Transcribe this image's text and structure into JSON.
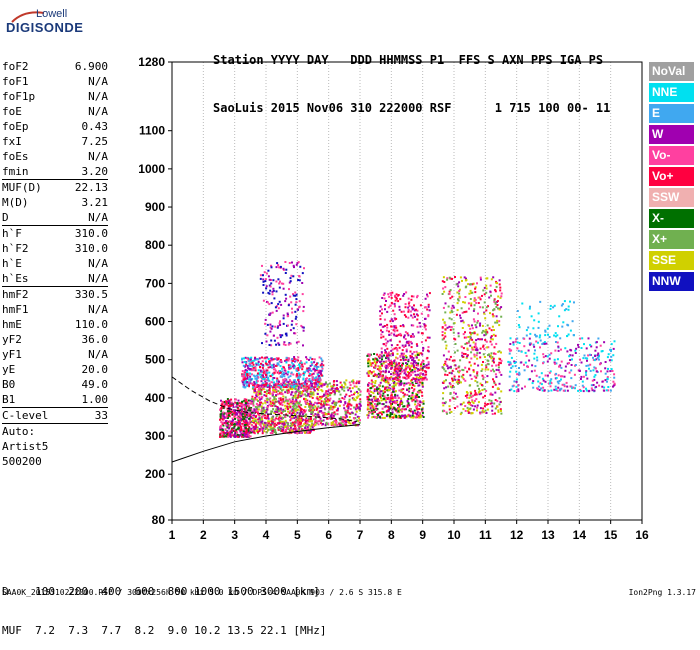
{
  "logo": {
    "line1": "Lowell",
    "line2": "DIGISONDE"
  },
  "header": {
    "line1": "Station YYYY DAY   DDD HHMMSS P1  FFS S AXN PPS IGA PS",
    "line2": "SaoLuis 2015 Nov06 310 222000 RSF      1 715 100 00- 11"
  },
  "params": [
    {
      "label": "foF2",
      "value": "6.900"
    },
    {
      "label": "foF1",
      "value": "N/A"
    },
    {
      "label": "foF1p",
      "value": "N/A"
    },
    {
      "label": "foE",
      "value": "N/A"
    },
    {
      "label": "foEp",
      "value": "0.43"
    },
    {
      "label": "fxI",
      "value": "7.25"
    },
    {
      "label": "foEs",
      "value": "N/A"
    },
    {
      "label": "fmin",
      "value": "3.20"
    },
    {
      "label": "MUF(D)",
      "value": "22.13"
    },
    {
      "label": "M(D)",
      "value": "3.21"
    },
    {
      "label": "D",
      "value": "N/A"
    },
    {
      "label": "h`F",
      "value": "310.0"
    },
    {
      "label": "h`F2",
      "value": "310.0"
    },
    {
      "label": "h`E",
      "value": "N/A"
    },
    {
      "label": "h`Es",
      "value": "N/A"
    },
    {
      "label": "hmF2",
      "value": "330.5"
    },
    {
      "label": "hmF1",
      "value": "N/A"
    },
    {
      "label": "hmE",
      "value": "110.0"
    },
    {
      "label": "yF2",
      "value": "36.0"
    },
    {
      "label": "yF1",
      "value": "N/A"
    },
    {
      "label": "yE",
      "value": "20.0"
    },
    {
      "label": "B0",
      "value": "49.0"
    },
    {
      "label": "B1",
      "value": "1.00"
    },
    {
      "label": "C-level",
      "value": "33"
    },
    {
      "label": "Auto:",
      "value": ""
    },
    {
      "label": "Artist5",
      "value": ""
    },
    {
      "label": "500200",
      "value": ""
    }
  ],
  "legend": [
    {
      "label": "NoVal",
      "color": "#a0a0a0"
    },
    {
      "label": "NNE",
      "color": "#00e0f0"
    },
    {
      "label": "E",
      "color": "#40a8f0"
    },
    {
      "label": "W",
      "color": "#a000b0"
    },
    {
      "label": "Vo-",
      "color": "#ff40a0"
    },
    {
      "label": "Vo+",
      "color": "#ff0040"
    },
    {
      "label": "SSW",
      "color": "#f0b0b0"
    },
    {
      "label": "X-",
      "color": "#007000"
    },
    {
      "label": "X+",
      "color": "#70b050"
    },
    {
      "label": "SSE",
      "color": "#d0d000"
    },
    {
      "label": "NNW",
      "color": "#1010c0"
    }
  ],
  "bottom": {
    "d_row": "D    100  200  400  600  800 1000 1500 3000 [km]",
    "muf_row": "MUF  7.2  7.3  7.7  8.2  9.0 10.2 13.5 22.1 [MHz]"
  },
  "footer": {
    "text": "SAA0K_2015310222000.RSF / 300fx256h 50 kHz 5.0 km / DPS-4 SAA0K 903 / 2.6 S 315.8 E",
    "version": "Ion2Png 1.3.17"
  },
  "chart_data": {
    "type": "scatter",
    "x_range": [
      1,
      16
    ],
    "y_range": [
      80,
      1280
    ],
    "x_ticks": [
      "1",
      "2",
      "3",
      "4",
      "5",
      "6",
      "7",
      "8",
      "9",
      "10",
      "11",
      "12",
      "13",
      "14",
      "15",
      "16"
    ],
    "y_ticks": [
      "80",
      "200",
      "300",
      "400",
      "500",
      "600",
      "700",
      "800",
      "900",
      "1000",
      "1100",
      "1280"
    ],
    "clusters": [
      {
        "x": [
          2.5,
          3.5
        ],
        "y": [
          300,
          400
        ],
        "colors": [
          "Vo+",
          "Vo-",
          "W",
          "X-"
        ],
        "n": 500
      },
      {
        "x": [
          3.5,
          5.5
        ],
        "y": [
          310,
          440
        ],
        "colors": [
          "Vo+",
          "Vo-",
          "W",
          "SSE",
          "X+"
        ],
        "n": 900
      },
      {
        "x": [
          3.2,
          5.8
        ],
        "y": [
          430,
          510
        ],
        "colors": [
          "W",
          "Vo-",
          "NNE",
          "E",
          "Vo+"
        ],
        "n": 600
      },
      {
        "x": [
          5.5,
          7.0
        ],
        "y": [
          330,
          450
        ],
        "colors": [
          "Vo+",
          "W",
          "Vo-",
          "SSE",
          "X+"
        ],
        "n": 400
      },
      {
        "x": [
          3.8,
          5.2
        ],
        "y": [
          540,
          760
        ],
        "colors": [
          "W",
          "Vo-",
          "NNW"
        ],
        "n": 180
      },
      {
        "x": [
          7.2,
          9.0
        ],
        "y": [
          350,
          520
        ],
        "colors": [
          "Vo+",
          "Vo-",
          "W",
          "SSE",
          "X-"
        ],
        "n": 700
      },
      {
        "x": [
          7.6,
          9.2
        ],
        "y": [
          450,
          680
        ],
        "colors": [
          "W",
          "Vo-",
          "Vo+"
        ],
        "n": 350
      },
      {
        "x": [
          9.6,
          11.5
        ],
        "y": [
          360,
          720
        ],
        "colors": [
          "SSE",
          "Vo+",
          "W",
          "X+",
          "Vo-"
        ],
        "n": 600
      },
      {
        "x": [
          11.7,
          15.1
        ],
        "y": [
          420,
          560
        ],
        "colors": [
          "NNE",
          "E",
          "Vo-",
          "W"
        ],
        "n": 350
      },
      {
        "x": [
          12.0,
          13.8
        ],
        "y": [
          560,
          660
        ],
        "colors": [
          "NNE",
          "E"
        ],
        "n": 60
      }
    ],
    "curves": [
      {
        "name": "",
        "style": "solid",
        "x": [
          1.0,
          2.0,
          3.0,
          4.0,
          5.0,
          6.0,
          7.0
        ],
        "y": [
          232,
          260,
          285,
          300,
          312,
          322,
          330
        ]
      },
      {
        "name": "",
        "style": "dashed",
        "x": [
          1.0,
          1.6,
          2.2,
          2.8,
          3.4,
          4.0,
          4.6,
          5.2,
          5.8,
          6.4,
          6.9
        ],
        "y": [
          455,
          420,
          392,
          372,
          362,
          358,
          355,
          352,
          349,
          345,
          338
        ]
      }
    ]
  }
}
